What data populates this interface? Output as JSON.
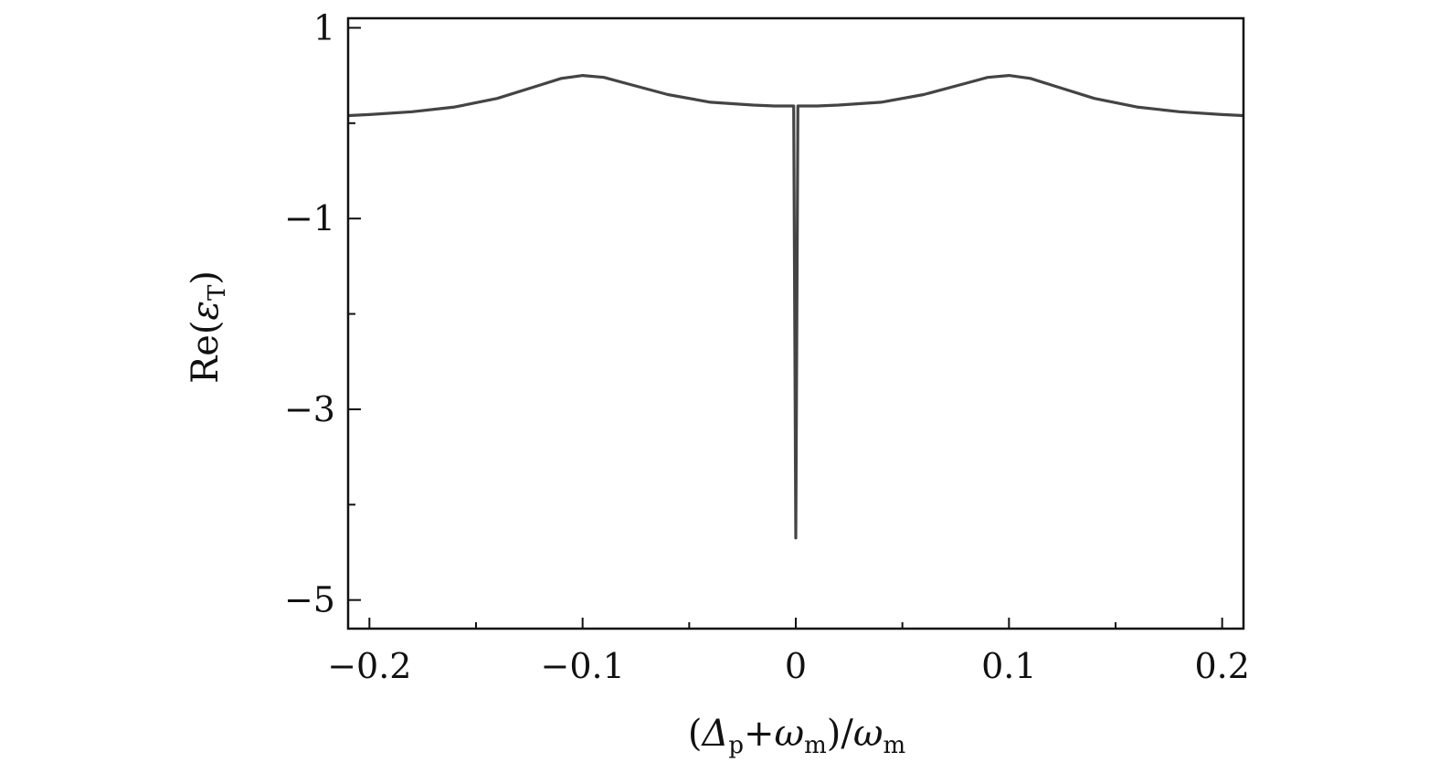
{
  "chart_data": {
    "type": "line",
    "title": "",
    "xlabel": {
      "open": "(",
      "delta": "Δ",
      "delta_sub": "p",
      "plus": "+",
      "omega": "ω",
      "omega_sub": "m",
      "close_slash": ")/",
      "omega2": "ω",
      "omega2_sub": "m"
    },
    "ylabel": {
      "re": "Re(",
      "eps": "ε",
      "eps_sub": "T",
      "close": ")"
    },
    "xlim": [
      -0.21,
      0.21
    ],
    "ylim": [
      -5.3,
      1.1
    ],
    "x_ticks_major": [
      -0.2,
      -0.1,
      0,
      0.1,
      0.2
    ],
    "x_tick_labels": [
      "−0.2",
      "−0.1",
      "0",
      "0.1",
      "0.2"
    ],
    "x_ticks_minor": [
      -0.15,
      -0.05,
      0.05,
      0.15
    ],
    "y_ticks_major": [
      1,
      -1,
      -3,
      -5
    ],
    "y_tick_labels": [
      "1",
      "−1",
      "−3",
      "−5"
    ],
    "y_ticks_minor": [
      0,
      -2,
      -4
    ],
    "grid": false,
    "legend": "none",
    "line_color": "#444444",
    "series": [
      {
        "x": [
          -0.21,
          -0.2,
          -0.18,
          -0.16,
          -0.14,
          -0.12,
          -0.11,
          -0.1,
          -0.09,
          -0.08,
          -0.06,
          -0.04,
          -0.02,
          -0.01,
          -0.001,
          0.0,
          0.001,
          0.01,
          0.02,
          0.04,
          0.06,
          0.08,
          0.09,
          0.1,
          0.11,
          0.12,
          0.14,
          0.16,
          0.18,
          0.2,
          0.21
        ],
        "y": [
          0.08,
          0.09,
          0.12,
          0.17,
          0.26,
          0.4,
          0.47,
          0.5,
          0.48,
          0.42,
          0.3,
          0.22,
          0.19,
          0.18,
          0.18,
          -4.35,
          0.18,
          0.18,
          0.19,
          0.22,
          0.3,
          0.42,
          0.48,
          0.5,
          0.47,
          0.4,
          0.26,
          0.17,
          0.12,
          0.09,
          0.08
        ]
      }
    ]
  }
}
